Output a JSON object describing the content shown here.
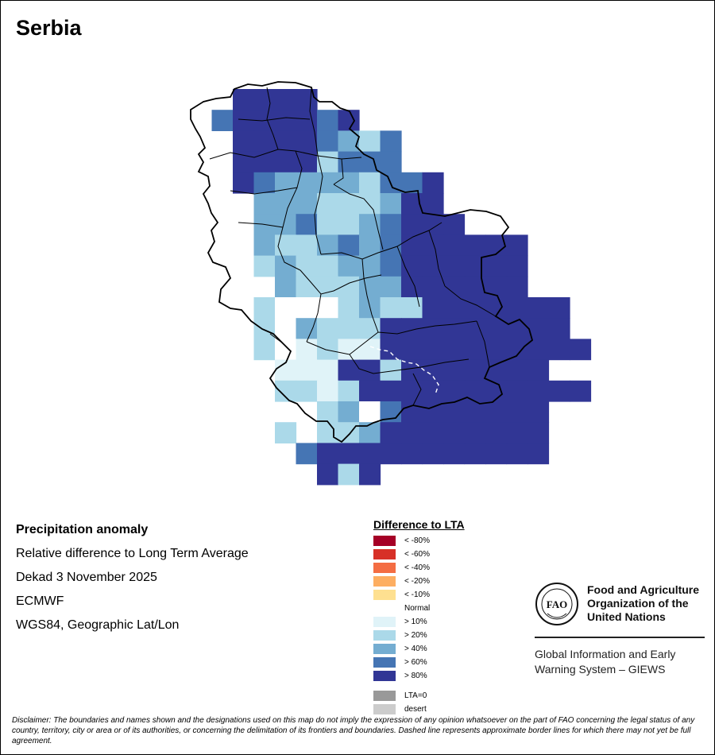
{
  "title": "Serbia",
  "info": {
    "product": "Precipitation anomaly",
    "measure": "Relative difference to Long Term Average",
    "period": "Dekad 3 November 2025",
    "source": "ECMWF",
    "projection": "WGS84, Geographic Lat/Lon"
  },
  "legend": {
    "title": "Difference to LTA",
    "classes": [
      {
        "label": "< -80%",
        "color": "#a50026"
      },
      {
        "label": "< -60%",
        "color": "#d73027"
      },
      {
        "label": "< -40%",
        "color": "#f46d43"
      },
      {
        "label": "< -20%",
        "color": "#fdae61"
      },
      {
        "label": "< -10%",
        "color": "#fee090"
      },
      {
        "label": "Normal",
        "color": "#ffffff"
      },
      {
        "label": "> 10%",
        "color": "#e0f3f8"
      },
      {
        "label": "> 20%",
        "color": "#abd9e9"
      },
      {
        "label": "> 40%",
        "color": "#74add1"
      },
      {
        "label": "> 60%",
        "color": "#4575b4"
      },
      {
        "label": "> 80%",
        "color": "#313695"
      }
    ],
    "extra": [
      {
        "label": "LTA=0",
        "color": "#999999"
      },
      {
        "label": "desert",
        "color": "#cccccc"
      }
    ]
  },
  "org": {
    "logo_text": "FAO",
    "name": "Food and Agriculture Organization of the United Nations",
    "system": "Global Information and Early Warning System – GIEWS"
  },
  "disclaimer": "Disclaimer: The boundaries and names shown and the designations used on this map do not imply the expression of any opinion whatsoever on the part of FAO concerning the legal status of any country, territory, city or area or of its authorities, or concerning the delimitation of its frontiers and boundaries. Dashed line represents approximate border lines for which there may not yet be full agreement."
}
